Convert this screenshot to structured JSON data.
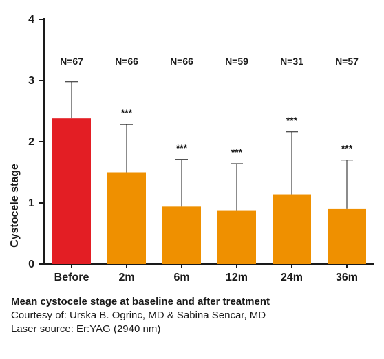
{
  "chart_data": {
    "type": "bar",
    "ylabel": "Cystocele stage",
    "xlabel": "",
    "ylim": [
      0,
      4
    ],
    "yticks": [
      0,
      1,
      2,
      3,
      4
    ],
    "categories": [
      "Before",
      "2m",
      "6m",
      "12m",
      "24m",
      "36m"
    ],
    "values": [
      2.38,
      1.5,
      0.94,
      0.87,
      1.14,
      0.9
    ],
    "error_upper": [
      2.98,
      2.28,
      1.71,
      1.64,
      2.16,
      1.7
    ],
    "n_labels": [
      "N=67",
      "N=66",
      "N=66",
      "N=59",
      "N=31",
      "N=57"
    ],
    "significance": [
      "",
      "***",
      "***",
      "***",
      "***",
      "***"
    ],
    "colors": [
      "#e31e24",
      "#ef9000",
      "#ef9000",
      "#ef9000",
      "#ef9000",
      "#ef9000"
    ],
    "grid": false,
    "legend": "none"
  },
  "caption": {
    "title": "Mean cystocele stage at baseline and after treatment",
    "courtesy": "Courtesy of: Urska B. Ogrinc, MD & Sabina Sencar, MD",
    "laser": "Laser source: Er:YAG (2940 nm)"
  }
}
